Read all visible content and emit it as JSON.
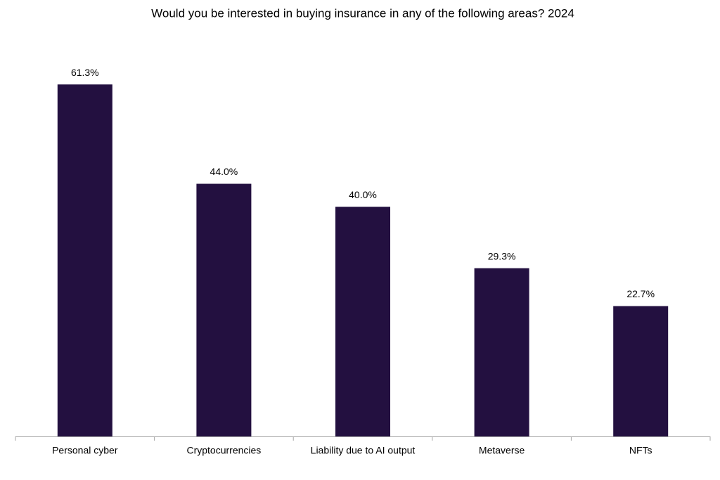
{
  "chart_data": {
    "type": "bar",
    "title": "Would you be interested in buying insurance in any of the following areas? 2024",
    "categories": [
      "Personal cyber",
      "Cryptocurrencies",
      "Liability due to AI output",
      "Metaverse",
      "NFTs"
    ],
    "values": [
      61.3,
      44.0,
      40.0,
      29.3,
      22.7
    ],
    "value_labels": [
      "61.3%",
      "44.0%",
      "40.0%",
      "29.3%",
      "22.7%"
    ],
    "color": "#231040"
  }
}
